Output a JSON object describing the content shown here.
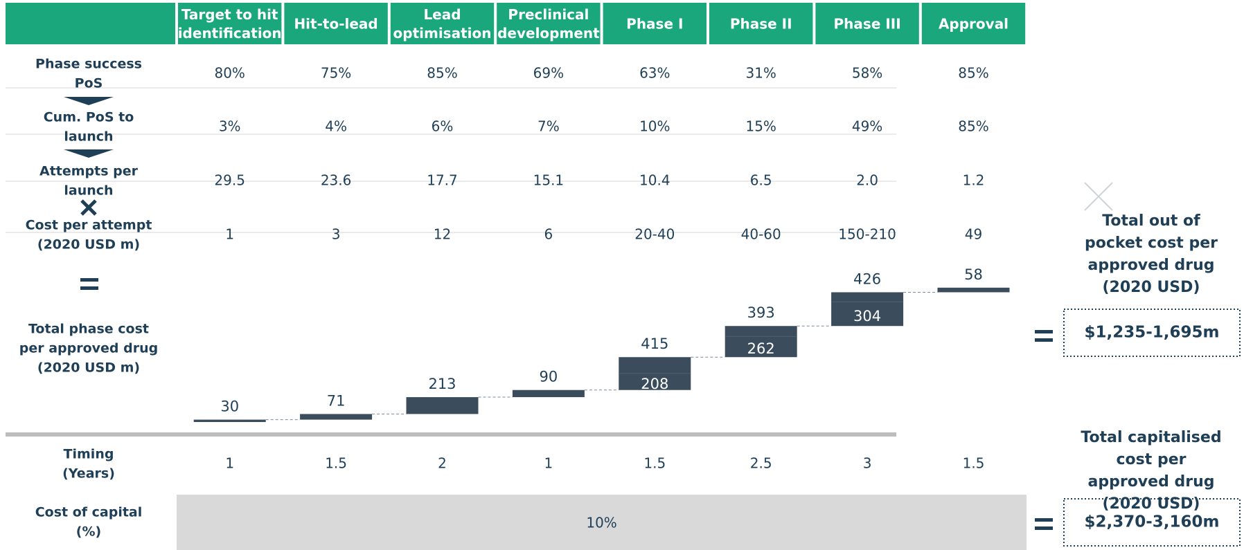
{
  "header": [
    [
      "Target to hit",
      "identification"
    ],
    [
      "Hit-to-lead"
    ],
    [
      "Lead",
      "optimisation"
    ],
    [
      "Preclinical",
      "development"
    ],
    [
      "Phase I"
    ],
    [
      "Phase II"
    ],
    [
      "Phase III"
    ],
    [
      "Approval"
    ]
  ],
  "rows": [
    {
      "label": [
        "Phase success",
        "PoS"
      ],
      "cells": [
        "80%",
        "75%",
        "85%",
        "69%",
        "63%",
        "31%",
        "58%",
        "85%"
      ]
    },
    {
      "label": [
        "Cum. PoS to",
        "launch"
      ],
      "cells": [
        "3%",
        "4%",
        "6%",
        "7%",
        "10%",
        "15%",
        "49%",
        "85%"
      ]
    },
    {
      "label": [
        "Attempts per",
        "launch"
      ],
      "cells": [
        "29.5",
        "23.6",
        "17.7",
        "15.1",
        "10.4",
        "6.5",
        "2.0",
        "1.2"
      ]
    },
    {
      "label": [
        "Cost per attempt",
        "(2020 USD m)"
      ],
      "cells": [
        "1",
        "3",
        "12",
        "6",
        "20-40",
        "40-60",
        "150-210",
        "49"
      ]
    }
  ],
  "waterfall": {
    "label": [
      "Total phase cost",
      "per approved drug",
      "(2020 USD m)"
    ],
    "steps": [
      {
        "value": 30
      },
      {
        "value": 71
      },
      {
        "value": 213
      },
      {
        "value": 90
      },
      {
        "low": 208,
        "high": 415
      },
      {
        "low": 262,
        "high": 393
      },
      {
        "low": 304,
        "high": 426
      },
      {
        "value": 58
      }
    ]
  },
  "timing": {
    "label": [
      "Timing",
      "(Years)"
    ],
    "cells": [
      "1",
      "1.5",
      "2",
      "1",
      "1.5",
      "2.5",
      "3",
      "1.5"
    ]
  },
  "cost_of_capital": {
    "label": [
      "Cost of capital",
      "(%)"
    ],
    "value": "10%"
  },
  "totals": [
    {
      "label": [
        "Total out of",
        "pocket cost per",
        "approved drug",
        "(2020 USD)"
      ],
      "value": "$1,235-1,695m"
    },
    {
      "label": [
        "Total capitalised",
        "cost per",
        "approved drug",
        "(2020 USD)"
      ],
      "value": "$2,370-3,160m"
    }
  ]
}
